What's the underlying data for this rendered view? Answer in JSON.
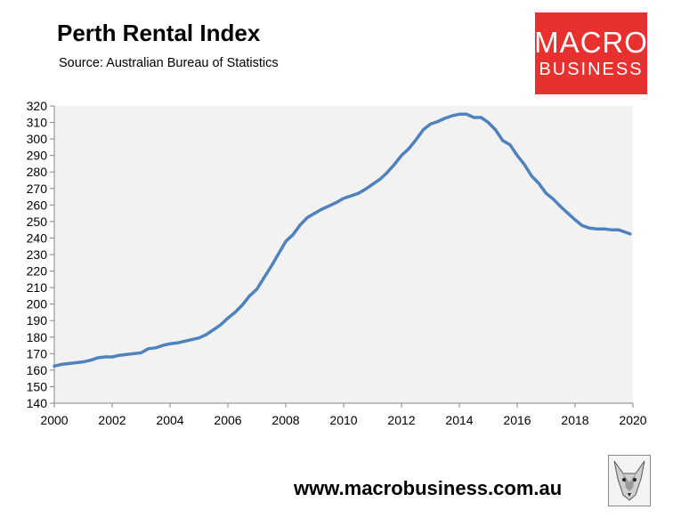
{
  "header": {
    "title": "Perth Rental Index",
    "subtitle": "Source: Australian Bureau of Statistics"
  },
  "logo": {
    "line1": "MACRO",
    "line2": "BUSINESS",
    "color": "#e8312f"
  },
  "footer": {
    "url": "www.macrobusiness.com.au",
    "emblem_icon": "fox-emblem-icon"
  },
  "chart_data": {
    "type": "line",
    "title": "Perth Rental Index",
    "xlim": [
      2000,
      2020
    ],
    "ylim": [
      140,
      320
    ],
    "x_ticks": [
      "2000",
      "2002",
      "2004",
      "2006",
      "2008",
      "2010",
      "2012",
      "2014",
      "2016",
      "2018",
      "2020"
    ],
    "y_ticks": [
      "320",
      "310",
      "300",
      "290",
      "280",
      "270",
      "260",
      "250",
      "240",
      "230",
      "220",
      "210",
      "200",
      "190",
      "180",
      "170",
      "160",
      "150",
      "140"
    ],
    "grid": false,
    "legend": "none",
    "plot_background": "#f2f2f2",
    "series": [
      {
        "color": "#4f81bd",
        "x": [
          2000.0,
          2000.25,
          2000.5,
          2000.75,
          2001.0,
          2001.25,
          2001.5,
          2001.75,
          2002.0,
          2002.25,
          2002.5,
          2002.75,
          2003.0,
          2003.25,
          2003.5,
          2003.75,
          2004.0,
          2004.25,
          2004.5,
          2004.75,
          2005.0,
          2005.25,
          2005.5,
          2005.75,
          2006.0,
          2006.25,
          2006.5,
          2006.75,
          2007.0,
          2007.25,
          2007.5,
          2007.75,
          2008.0,
          2008.25,
          2008.5,
          2008.75,
          2009.0,
          2009.25,
          2009.5,
          2009.75,
          2010.0,
          2010.25,
          2010.5,
          2010.75,
          2011.0,
          2011.25,
          2011.5,
          2011.75,
          2012.0,
          2012.25,
          2012.5,
          2012.75,
          2013.0,
          2013.25,
          2013.5,
          2013.75,
          2014.0,
          2014.25,
          2014.5,
          2014.75,
          2015.0,
          2015.25,
          2015.5,
          2015.75,
          2016.0,
          2016.25,
          2016.5,
          2016.75,
          2017.0,
          2017.25,
          2017.5,
          2017.75,
          2018.0,
          2018.25,
          2018.5,
          2018.75,
          2019.0,
          2019.25,
          2019.5,
          2019.75,
          2019.9
        ],
        "y": [
          162.5,
          163.5,
          164,
          164.5,
          165,
          166,
          167.5,
          168,
          168,
          169,
          169.5,
          170,
          170.5,
          173,
          173.5,
          175,
          176,
          176.5,
          177.5,
          178.5,
          179.5,
          181.5,
          184.5,
          187.5,
          191.5,
          195,
          199.5,
          205,
          209,
          216,
          223,
          230.5,
          238,
          242,
          248,
          252.5,
          255,
          257.5,
          259.5,
          261.5,
          264,
          265.5,
          267,
          269.5,
          272.5,
          275.5,
          279.5,
          284.5,
          290,
          294,
          299.5,
          305.5,
          309,
          310.5,
          312.5,
          314,
          315,
          315,
          313,
          313,
          310,
          305.5,
          299,
          296.5,
          290,
          284.5,
          277.5,
          273,
          267,
          263.5,
          259,
          255,
          251,
          247.5,
          246,
          245.5,
          245.5,
          245,
          245,
          243.5,
          242.5
        ]
      }
    ]
  }
}
